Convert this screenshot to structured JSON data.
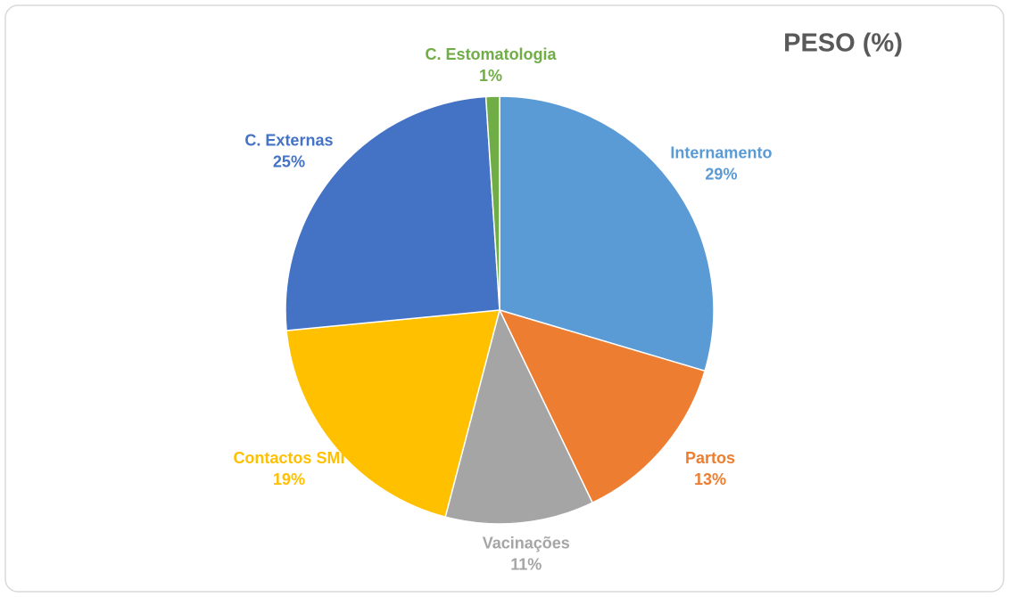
{
  "chart_data": {
    "type": "pie",
    "title": "PESO (%)",
    "categories": [
      "Internamento",
      "Partos",
      "Vacinações",
      "Contactos SMI",
      "C. Externas",
      "C. Estomatologia"
    ],
    "values": [
      29,
      13,
      11,
      19,
      25,
      1
    ],
    "value_labels": [
      "29%",
      "13%",
      "11%",
      "19%",
      "25%",
      "1%"
    ],
    "colors": [
      "#5b9bd5",
      "#ed7d31",
      "#a5a5a5",
      "#ffc000",
      "#4472c4",
      "#70ad47"
    ]
  }
}
